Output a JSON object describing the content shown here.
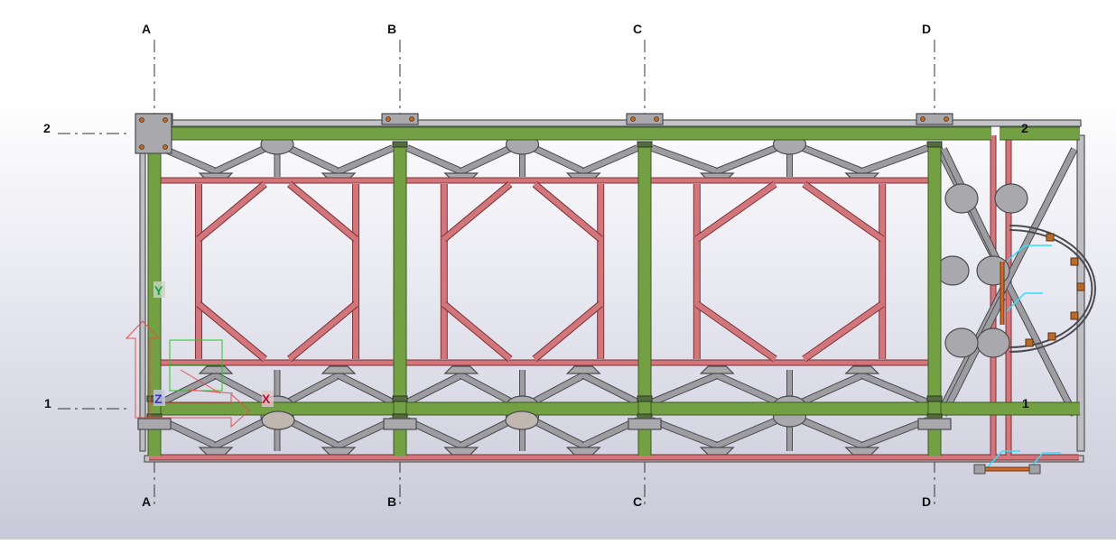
{
  "grid": {
    "columns": [
      {
        "label": "A"
      },
      {
        "label": "B"
      },
      {
        "label": "C"
      },
      {
        "label": "D"
      }
    ],
    "rows": [
      {
        "label": "2"
      },
      {
        "label": "1"
      }
    ]
  },
  "axes": {
    "x_label": "X",
    "y_label": "Y",
    "z_label": "Z"
  },
  "colors": {
    "chord": "#72a043",
    "chord_edge": "#3d5a22",
    "brace": "#d3767b",
    "brace_edge": "#7a3338",
    "steel": "#9c9ca1",
    "steel_edge": "#4a4a4f",
    "axis_x": "#c0103a",
    "axis_y": "#18a040",
    "axis_z": "#3838c8",
    "accent": "#30e0ff",
    "bolt": "#b86b2a"
  }
}
